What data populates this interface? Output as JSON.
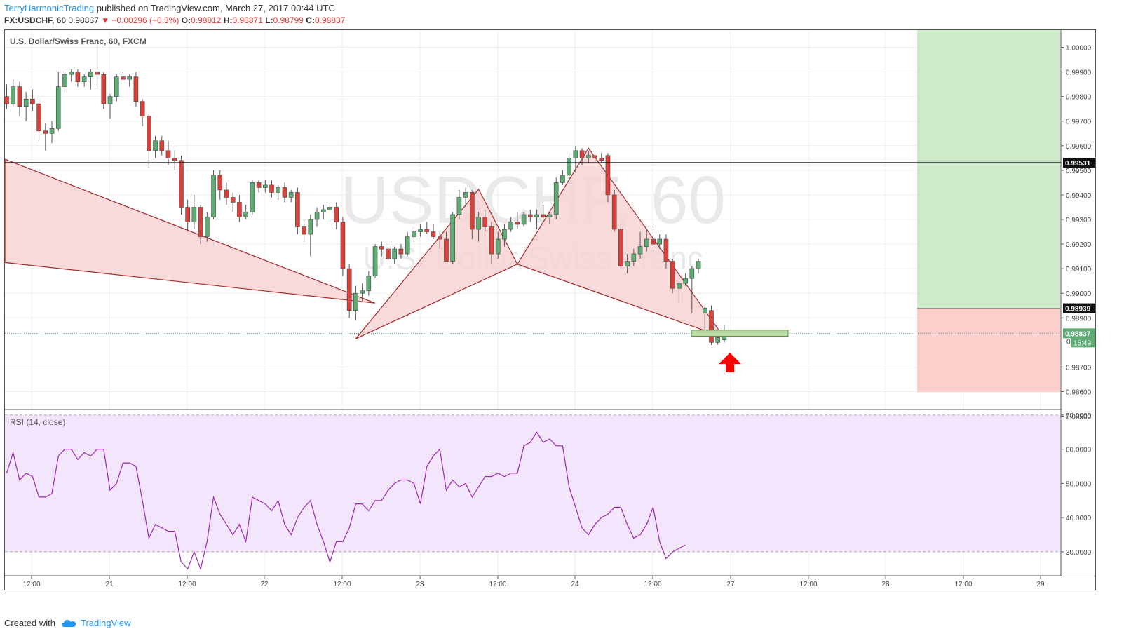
{
  "header": {
    "author": "TerryHarmonicTrading",
    "published": "published on TradingView.com, March 27, 2017 00:44 UTC"
  },
  "quote": {
    "symbol": "FX:USDCHF, 60",
    "last": "0.98837",
    "change_arrow": "▼",
    "change": "−0.00296 (−0.3%)",
    "o_label": "O:",
    "o": "0.98812",
    "h_label": "H:",
    "h": "0.98871",
    "l_label": "L:",
    "l": "0.98799",
    "c_label": "C:",
    "c": "0.98837"
  },
  "footer": {
    "created": "Created with",
    "brand": "TradingView",
    "icon": "tradingview-cloud-icon"
  },
  "colors": {
    "up": "#5eab74",
    "down": "#d9413a",
    "pattern_fill": "#f7d4d4",
    "pattern_line": "#a52a2a",
    "profit_zone": "#cdebc9",
    "loss_zone": "#fbcfcc",
    "rsi_band": "#f3e5fb",
    "rsi_line": "#9c27b0",
    "arrow": "#ff0000",
    "entry_box": "#b9dba6"
  },
  "chart_data": [
    {
      "type": "candlestick",
      "title": "U.S. Dollar/Swiss Franc, 60, FXCM",
      "watermark": {
        "symbol": "USDCHF, 60",
        "name": "U.S. Dollar/Swiss Franc"
      },
      "ylim": [
        0.9853,
        1.0007
      ],
      "y_ticks": [
        "1.00000",
        "0.99900",
        "0.99800",
        "0.99700",
        "0.99600",
        "0.99500",
        "0.99400",
        "0.99300",
        "0.99200",
        "0.99100",
        "0.99000",
        "0.98900",
        "0.98700",
        "0.98600",
        "0.98500"
      ],
      "x_ticks": [
        "12:00",
        "21",
        "12:00",
        "22",
        "12:00",
        "23",
        "12:00",
        "24",
        "12:00",
        "27",
        "12:00",
        "28",
        "12:00",
        "29"
      ],
      "price_labels": {
        "level": "0.99531",
        "stop": "0.98939",
        "last": "0.98837",
        "countdown": "15:49",
        "partial": "0"
      },
      "horizontal_level": 0.99531,
      "last_price": 0.98837,
      "candles": [
        {
          "o": 0.998,
          "h": 0.9985,
          "l": 0.9975,
          "c": 0.9977
        },
        {
          "o": 0.9977,
          "h": 0.9987,
          "l": 0.9976,
          "c": 0.9984
        },
        {
          "o": 0.9984,
          "h": 0.9986,
          "l": 0.9972,
          "c": 0.9976
        },
        {
          "o": 0.9976,
          "h": 0.9982,
          "l": 0.997,
          "c": 0.9979
        },
        {
          "o": 0.9979,
          "h": 0.9983,
          "l": 0.9974,
          "c": 0.9977
        },
        {
          "o": 0.9977,
          "h": 0.9979,
          "l": 0.9962,
          "c": 0.9966
        },
        {
          "o": 0.9966,
          "h": 0.9969,
          "l": 0.9958,
          "c": 0.9965
        },
        {
          "o": 0.9965,
          "h": 0.997,
          "l": 0.9961,
          "c": 0.9967
        },
        {
          "o": 0.9967,
          "h": 0.999,
          "l": 0.9966,
          "c": 0.9984
        },
        {
          "o": 0.9984,
          "h": 0.999,
          "l": 0.9982,
          "c": 0.9989
        },
        {
          "o": 0.9989,
          "h": 0.9991,
          "l": 0.9986,
          "c": 0.999
        },
        {
          "o": 0.999,
          "h": 0.9991,
          "l": 0.9984,
          "c": 0.9986
        },
        {
          "o": 0.9986,
          "h": 0.9989,
          "l": 0.9984,
          "c": 0.9988
        },
        {
          "o": 0.9988,
          "h": 0.9991,
          "l": 0.9983,
          "c": 0.999
        },
        {
          "o": 0.999,
          "h": 1.0002,
          "l": 0.9983,
          "c": 0.9989
        },
        {
          "o": 0.9989,
          "h": 0.999,
          "l": 0.9975,
          "c": 0.9977
        },
        {
          "o": 0.9977,
          "h": 0.9981,
          "l": 0.9971,
          "c": 0.998
        },
        {
          "o": 0.998,
          "h": 0.9989,
          "l": 0.9978,
          "c": 0.9988
        },
        {
          "o": 0.9988,
          "h": 0.999,
          "l": 0.9985,
          "c": 0.9987
        },
        {
          "o": 0.9987,
          "h": 0.9989,
          "l": 0.9984,
          "c": 0.9988
        },
        {
          "o": 0.9988,
          "h": 0.999,
          "l": 0.9976,
          "c": 0.9978
        },
        {
          "o": 0.9978,
          "h": 0.9979,
          "l": 0.9968,
          "c": 0.9972
        },
        {
          "o": 0.9972,
          "h": 0.9973,
          "l": 0.9951,
          "c": 0.9958
        },
        {
          "o": 0.9958,
          "h": 0.9964,
          "l": 0.9955,
          "c": 0.9962
        },
        {
          "o": 0.9962,
          "h": 0.9964,
          "l": 0.9956,
          "c": 0.9958
        },
        {
          "o": 0.9958,
          "h": 0.9962,
          "l": 0.9952,
          "c": 0.9955
        },
        {
          "o": 0.9955,
          "h": 0.9958,
          "l": 0.995,
          "c": 0.9954
        },
        {
          "o": 0.9954,
          "h": 0.9956,
          "l": 0.9932,
          "c": 0.9935
        },
        {
          "o": 0.9935,
          "h": 0.9938,
          "l": 0.9925,
          "c": 0.9929
        },
        {
          "o": 0.9929,
          "h": 0.994,
          "l": 0.9926,
          "c": 0.9935
        },
        {
          "o": 0.9935,
          "h": 0.9936,
          "l": 0.992,
          "c": 0.9923
        },
        {
          "o": 0.9923,
          "h": 0.9933,
          "l": 0.9921,
          "c": 0.9931
        },
        {
          "o": 0.9931,
          "h": 0.995,
          "l": 0.993,
          "c": 0.9948
        },
        {
          "o": 0.9948,
          "h": 0.995,
          "l": 0.9938,
          "c": 0.9942
        },
        {
          "o": 0.9942,
          "h": 0.9945,
          "l": 0.9936,
          "c": 0.9939
        },
        {
          "o": 0.9939,
          "h": 0.9941,
          "l": 0.9933,
          "c": 0.9937
        },
        {
          "o": 0.9937,
          "h": 0.994,
          "l": 0.9929,
          "c": 0.9931
        },
        {
          "o": 0.9931,
          "h": 0.9936,
          "l": 0.993,
          "c": 0.9933
        },
        {
          "o": 0.9933,
          "h": 0.9946,
          "l": 0.9932,
          "c": 0.9945
        },
        {
          "o": 0.9945,
          "h": 0.9946,
          "l": 0.9941,
          "c": 0.9943
        },
        {
          "o": 0.9943,
          "h": 0.9946,
          "l": 0.9941,
          "c": 0.9944
        },
        {
          "o": 0.9944,
          "h": 0.9946,
          "l": 0.9939,
          "c": 0.9941
        },
        {
          "o": 0.9941,
          "h": 0.9944,
          "l": 0.9938,
          "c": 0.9943
        },
        {
          "o": 0.9943,
          "h": 0.9945,
          "l": 0.9937,
          "c": 0.9939
        },
        {
          "o": 0.9939,
          "h": 0.9942,
          "l": 0.9937,
          "c": 0.9941
        },
        {
          "o": 0.9941,
          "h": 0.9943,
          "l": 0.9924,
          "c": 0.9927
        },
        {
          "o": 0.9927,
          "h": 0.993,
          "l": 0.9921,
          "c": 0.9924
        },
        {
          "o": 0.9924,
          "h": 0.9932,
          "l": 0.9915,
          "c": 0.993
        },
        {
          "o": 0.993,
          "h": 0.9935,
          "l": 0.9927,
          "c": 0.9933
        },
        {
          "o": 0.9933,
          "h": 0.9936,
          "l": 0.993,
          "c": 0.9934
        },
        {
          "o": 0.9934,
          "h": 0.9937,
          "l": 0.9929,
          "c": 0.9935
        },
        {
          "o": 0.9935,
          "h": 0.9937,
          "l": 0.9926,
          "c": 0.9929
        },
        {
          "o": 0.9929,
          "h": 0.9931,
          "l": 0.9907,
          "c": 0.991
        },
        {
          "o": 0.991,
          "h": 0.9912,
          "l": 0.989,
          "c": 0.9893
        },
        {
          "o": 0.9893,
          "h": 0.9903,
          "l": 0.9889,
          "c": 0.99
        },
        {
          "o": 0.99,
          "h": 0.9904,
          "l": 0.9897,
          "c": 0.9901
        },
        {
          "o": 0.9901,
          "h": 0.9909,
          "l": 0.9899,
          "c": 0.9907
        },
        {
          "o": 0.9907,
          "h": 0.992,
          "l": 0.9906,
          "c": 0.9919
        },
        {
          "o": 0.9919,
          "h": 0.9921,
          "l": 0.9915,
          "c": 0.9918
        },
        {
          "o": 0.9918,
          "h": 0.992,
          "l": 0.9912,
          "c": 0.9914
        },
        {
          "o": 0.9914,
          "h": 0.9919,
          "l": 0.9912,
          "c": 0.9918
        },
        {
          "o": 0.9918,
          "h": 0.992,
          "l": 0.9914,
          "c": 0.9916
        },
        {
          "o": 0.9916,
          "h": 0.9925,
          "l": 0.9915,
          "c": 0.9923
        },
        {
          "o": 0.9923,
          "h": 0.9927,
          "l": 0.9921,
          "c": 0.9925
        },
        {
          "o": 0.9925,
          "h": 0.9928,
          "l": 0.9923,
          "c": 0.9926
        },
        {
          "o": 0.9926,
          "h": 0.9929,
          "l": 0.9924,
          "c": 0.9925
        },
        {
          "o": 0.9925,
          "h": 0.9928,
          "l": 0.9922,
          "c": 0.9923
        },
        {
          "o": 0.9923,
          "h": 0.9925,
          "l": 0.9918,
          "c": 0.9922
        },
        {
          "o": 0.9922,
          "h": 0.9925,
          "l": 0.9913,
          "c": 0.9913
        },
        {
          "o": 0.9913,
          "h": 0.9933,
          "l": 0.9912,
          "c": 0.9932
        },
        {
          "o": 0.9932,
          "h": 0.9942,
          "l": 0.993,
          "c": 0.9939
        },
        {
          "o": 0.9939,
          "h": 0.9943,
          "l": 0.9935,
          "c": 0.9941
        },
        {
          "o": 0.9941,
          "h": 0.9942,
          "l": 0.9922,
          "c": 0.9926
        },
        {
          "o": 0.9926,
          "h": 0.9933,
          "l": 0.9921,
          "c": 0.9931
        },
        {
          "o": 0.9931,
          "h": 0.9934,
          "l": 0.9925,
          "c": 0.9927
        },
        {
          "o": 0.9927,
          "h": 0.9929,
          "l": 0.9912,
          "c": 0.9916
        },
        {
          "o": 0.9916,
          "h": 0.9925,
          "l": 0.9914,
          "c": 0.9922
        },
        {
          "o": 0.9922,
          "h": 0.9928,
          "l": 0.9919,
          "c": 0.9926
        },
        {
          "o": 0.9926,
          "h": 0.9931,
          "l": 0.9925,
          "c": 0.9929
        },
        {
          "o": 0.9929,
          "h": 0.9933,
          "l": 0.9926,
          "c": 0.9928
        },
        {
          "o": 0.9928,
          "h": 0.9933,
          "l": 0.9927,
          "c": 0.9932
        },
        {
          "o": 0.9932,
          "h": 0.9934,
          "l": 0.9929,
          "c": 0.9931
        },
        {
          "o": 0.9931,
          "h": 0.9934,
          "l": 0.9926,
          "c": 0.9932
        },
        {
          "o": 0.9932,
          "h": 0.9936,
          "l": 0.993,
          "c": 0.9931
        },
        {
          "o": 0.9931,
          "h": 0.9933,
          "l": 0.9928,
          "c": 0.9932
        },
        {
          "o": 0.9932,
          "h": 0.9947,
          "l": 0.993,
          "c": 0.9945
        },
        {
          "o": 0.9945,
          "h": 0.995,
          "l": 0.9944,
          "c": 0.9948
        },
        {
          "o": 0.9948,
          "h": 0.9957,
          "l": 0.9946,
          "c": 0.9955
        },
        {
          "o": 0.9955,
          "h": 0.996,
          "l": 0.9949,
          "c": 0.9958
        },
        {
          "o": 0.9958,
          "h": 0.9959,
          "l": 0.9952,
          "c": 0.9955
        },
        {
          "o": 0.9955,
          "h": 0.9958,
          "l": 0.9953,
          "c": 0.9956
        },
        {
          "o": 0.9956,
          "h": 0.9958,
          "l": 0.9954,
          "c": 0.9955
        },
        {
          "o": 0.9955,
          "h": 0.9957,
          "l": 0.9953,
          "c": 0.9954
        },
        {
          "o": 0.9956,
          "h": 0.9957,
          "l": 0.9937,
          "c": 0.994
        },
        {
          "o": 0.994,
          "h": 0.9942,
          "l": 0.9925,
          "c": 0.9926
        },
        {
          "o": 0.9926,
          "h": 0.9928,
          "l": 0.991,
          "c": 0.9911
        },
        {
          "o": 0.9911,
          "h": 0.9916,
          "l": 0.9908,
          "c": 0.9913
        },
        {
          "o": 0.9913,
          "h": 0.9918,
          "l": 0.9911,
          "c": 0.9916
        },
        {
          "o": 0.9916,
          "h": 0.9925,
          "l": 0.9914,
          "c": 0.9919
        },
        {
          "o": 0.9919,
          "h": 0.9926,
          "l": 0.9917,
          "c": 0.9922
        },
        {
          "o": 0.9922,
          "h": 0.9926,
          "l": 0.9917,
          "c": 0.992
        },
        {
          "o": 0.992,
          "h": 0.9924,
          "l": 0.9918,
          "c": 0.9922
        },
        {
          "o": 0.9922,
          "h": 0.9924,
          "l": 0.991,
          "c": 0.9913
        },
        {
          "o": 0.9913,
          "h": 0.9914,
          "l": 0.99,
          "c": 0.9902
        },
        {
          "o": 0.9902,
          "h": 0.9905,
          "l": 0.9896,
          "c": 0.9904
        },
        {
          "o": 0.9904,
          "h": 0.9908,
          "l": 0.9903,
          "c": 0.9906
        },
        {
          "o": 0.9906,
          "h": 0.9911,
          "l": 0.9892,
          "c": 0.991
        },
        {
          "o": 0.991,
          "h": 0.9914,
          "l": 0.9908,
          "c": 0.9913
        },
        {
          "o": 0.9892,
          "h": 0.9895,
          "l": 0.9884,
          "c": 0.9894
        },
        {
          "o": 0.9893,
          "h": 0.9895,
          "l": 0.9879,
          "c": 0.988
        },
        {
          "o": 0.988,
          "h": 0.9884,
          "l": 0.9879,
          "c": 0.9882
        },
        {
          "o": 0.9881,
          "h": 0.9887,
          "l": 0.988,
          "c": 0.9884
        }
      ]
    },
    {
      "type": "line",
      "title": "RSI (14, close)",
      "ylim": [
        23,
        71
      ],
      "y_ticks": [
        "70.0000",
        "60.0000",
        "50.0000",
        "40.0000",
        "30.0000"
      ],
      "bands": [
        30,
        70
      ],
      "values": [
        53,
        59,
        51,
        53,
        52,
        46,
        46,
        47,
        58,
        60,
        60,
        57,
        59,
        58,
        60,
        60,
        48,
        50,
        56,
        56,
        55,
        45,
        34,
        38,
        37,
        36,
        36,
        27,
        25,
        30,
        25,
        33,
        46,
        41,
        38,
        35,
        38,
        33,
        46,
        45,
        44,
        42,
        45,
        38,
        35,
        40,
        43,
        45,
        38,
        33,
        27,
        33,
        33,
        37,
        44,
        44,
        42,
        45,
        45,
        48,
        50,
        51,
        51,
        50,
        44,
        55,
        58,
        60,
        48,
        51,
        49,
        50,
        46,
        49,
        52,
        52,
        53,
        52,
        53,
        53,
        61,
        62,
        65,
        62,
        63,
        61,
        61,
        49,
        43,
        37,
        35,
        38,
        40,
        41,
        43,
        43,
        38,
        34,
        35,
        38,
        43,
        33,
        28,
        30,
        31,
        32
      ]
    }
  ]
}
